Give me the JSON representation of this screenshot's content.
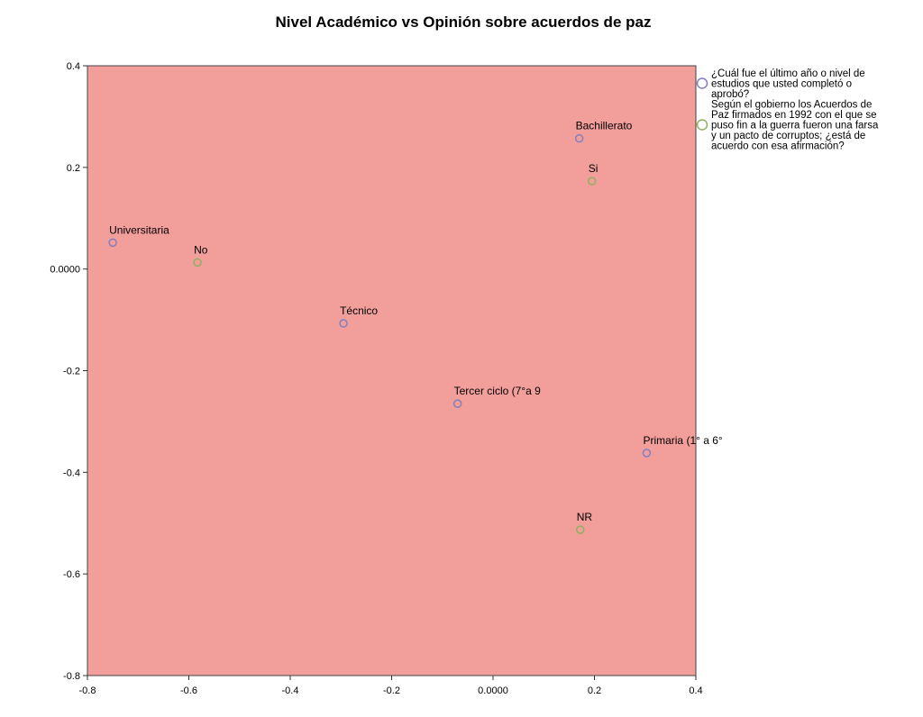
{
  "chart_data": {
    "type": "scatter",
    "title": "Nivel Académico vs Opinión sobre acuerdos de paz",
    "xlabel": "",
    "ylabel": "",
    "xlim": [
      -0.8,
      0.4
    ],
    "ylim": [
      -0.8,
      0.4
    ],
    "x_ticks": [
      "-0.8",
      "-0.6",
      "-0.4",
      "-0.2",
      "0.0000",
      "0.2",
      "0.4"
    ],
    "y_ticks": [
      "0.4",
      "0.2",
      "0.0000",
      "-0.2",
      "-0.4",
      "-0.6",
      "-0.8"
    ],
    "grid": false,
    "plot_background": "#f29e9b",
    "legend_position": "right",
    "series": [
      {
        "name": "¿Cuál fue el último año o nivel de estudios que usted completó o aprobó?",
        "legend_lines": [
          "¿Cuál fue el último año o nivel de",
          "estudios que usted completó o",
          "aprobó?"
        ],
        "color": "#8080c0",
        "points": [
          {
            "label": "Bachillerato",
            "x": 0.17,
            "y": 0.257
          },
          {
            "label": "Universitaria",
            "x": -0.75,
            "y": 0.052
          },
          {
            "label": "Técnico",
            "x": -0.295,
            "y": -0.107
          },
          {
            "label": "Tercer ciclo (7°a 9",
            "x": -0.07,
            "y": -0.265
          },
          {
            "label": "Primaria (1° a 6°",
            "x": 0.303,
            "y": -0.362
          }
        ]
      },
      {
        "name": "Según el gobierno los Acuerdos de Paz firmados en 1992 con el que se puso fin a la guerra fueron una farsa y un pacto de corruptos; ¿está de acuerdo con esa afirmación?",
        "legend_lines": [
          "Según el gobierno los Acuerdos de",
          "Paz firmados en 1992 con el que se",
          "puso fin a la guerra fueron una farsa",
          "y un pacto de corruptos; ¿está de",
          "acuerdo con esa afirmación?"
        ],
        "color": "#90b060",
        "points": [
          {
            "label": "Si",
            "x": 0.195,
            "y": 0.173
          },
          {
            "label": "No",
            "x": -0.583,
            "y": 0.013
          },
          {
            "label": "NR",
            "x": 0.172,
            "y": -0.513
          }
        ]
      }
    ]
  }
}
